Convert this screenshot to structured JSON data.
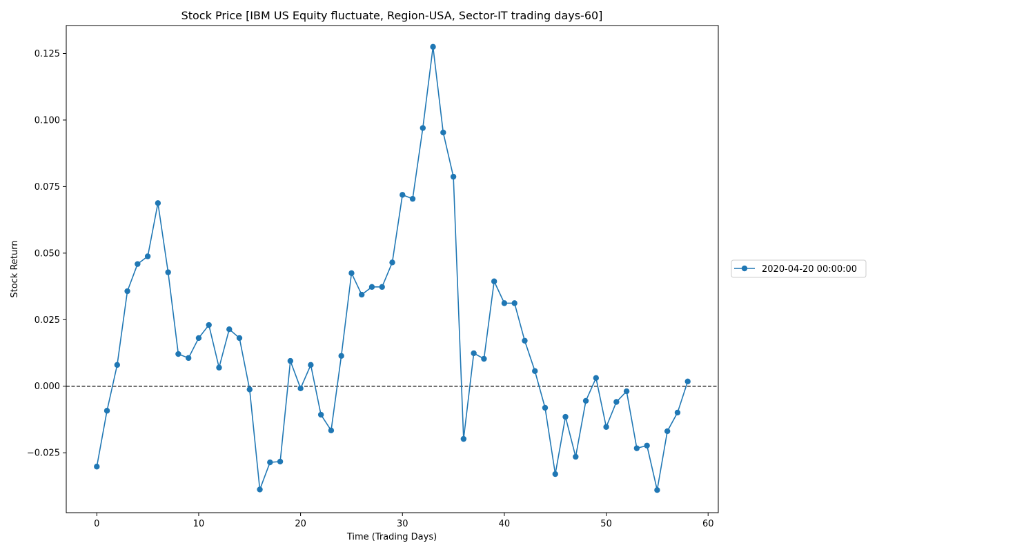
{
  "chart_data": {
    "type": "line",
    "title": "Stock Price [IBM US Equity fluctuate, Region-USA, Sector-IT trading days-60]",
    "xlabel": "Time (Trading Days)",
    "ylabel": "Stock Return",
    "xlim": [
      -3,
      61
    ],
    "ylim": [
      -0.0475,
      0.1355
    ],
    "xticks": [
      0,
      10,
      20,
      30,
      40,
      50,
      60
    ],
    "xtick_labels": [
      "0",
      "10",
      "20",
      "30",
      "40",
      "50",
      "60"
    ],
    "yticks": [
      -0.025,
      0.0,
      0.025,
      0.05,
      0.075,
      0.1,
      0.125
    ],
    "ytick_labels": [
      "−0.025",
      "0.000",
      "0.025",
      "0.050",
      "0.075",
      "0.100",
      "0.125"
    ],
    "reference_line": {
      "y": 0.0,
      "style": "dashed",
      "color": "#000000"
    },
    "grid": false,
    "legend_position": "right",
    "colors": {
      "series": "#1f77b4"
    },
    "series": [
      {
        "name": "2020-04-20 00:00:00",
        "x": [
          0,
          1,
          2,
          3,
          4,
          5,
          6,
          7,
          8,
          9,
          10,
          11,
          12,
          13,
          14,
          15,
          16,
          17,
          18,
          19,
          20,
          21,
          22,
          23,
          24,
          25,
          26,
          27,
          28,
          29,
          30,
          31,
          32,
          33,
          34,
          35,
          36,
          37,
          38,
          39,
          40,
          41,
          42,
          43,
          44,
          45,
          46,
          47,
          48,
          49,
          50,
          51,
          52,
          53,
          54,
          55,
          56,
          57,
          58
        ],
        "values": [
          -0.0302,
          -0.0092,
          0.008,
          0.0357,
          0.0459,
          0.0488,
          0.0688,
          0.0428,
          0.0121,
          0.0106,
          0.0181,
          0.023,
          0.007,
          0.0214,
          0.0181,
          -0.0012,
          -0.0388,
          -0.0286,
          -0.0283,
          0.0095,
          -0.0008,
          0.008,
          -0.0107,
          -0.0166,
          0.0114,
          0.0425,
          0.0344,
          0.0373,
          0.0373,
          0.0465,
          0.0719,
          0.0704,
          0.097,
          0.1275,
          0.0953,
          0.0787,
          -0.0198,
          0.0124,
          0.0103,
          0.0394,
          0.0312,
          0.0312,
          0.0171,
          0.0057,
          -0.0081,
          -0.033,
          -0.0115,
          -0.0265,
          -0.0055,
          0.0031,
          -0.0153,
          -0.0059,
          -0.0019,
          -0.0233,
          -0.0223,
          -0.039,
          -0.0169,
          -0.0099,
          0.0018
        ]
      }
    ]
  }
}
